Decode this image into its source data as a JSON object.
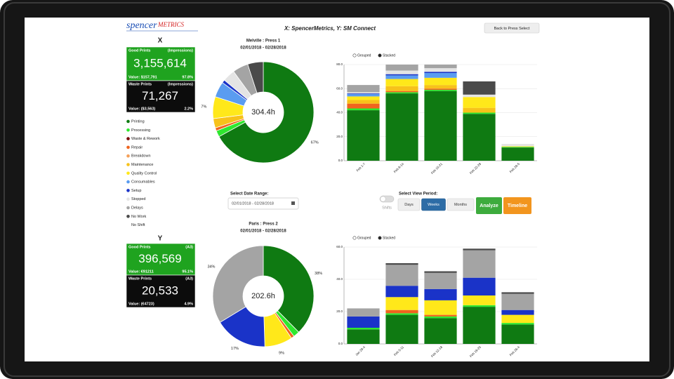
{
  "header": {
    "logo_main": "spencer",
    "logo_accent": "METRICS",
    "title": "X: SpencerMetrics, Y: SM Connect",
    "back_button": "Back to Press Select"
  },
  "panels": [
    {
      "heading": "X",
      "good": {
        "label": "Good Prints",
        "unit": "(Impressions)",
        "count": "3,155,614",
        "value": "Value: $157,791",
        "percent": "97.8%"
      },
      "waste": {
        "label": "Waste Prints",
        "unit": "(Impressions)",
        "count": "71,267",
        "value": "Value: ($3,563)",
        "percent": "2.2%"
      }
    },
    {
      "heading": "Y",
      "good": {
        "label": "Good Prints",
        "unit": "(A3)",
        "count": "396,569",
        "value": "Value: €91211",
        "percent": "95.1%"
      },
      "waste": {
        "label": "Waste Prints",
        "unit": "(A3)",
        "count": "20,533",
        "value": "Value: (€4723)",
        "percent": "4.9%"
      }
    }
  ],
  "controls": {
    "date_label": "Select Date Range:",
    "date_value": "02/01/2018 - 02/28/2018",
    "period_label": "Select View Period:",
    "shifts": "Shifts",
    "periods": [
      "Days",
      "Weeks",
      "Months"
    ],
    "selected_period": "Weeks",
    "analyze": "Analyze",
    "timeline": "Timeline"
  },
  "chart_data": [
    {
      "type": "pie",
      "title": "Melville : Press 1",
      "subtitle": "02/01/2018 - 02/28/2018",
      "center_label": "304.4h",
      "categories": [
        "Printing",
        "Processing",
        "Waste & Rework",
        "Repair",
        "Breakdown",
        "Maintenance",
        "Quality Control",
        "Consumables",
        "Setup",
        "Stopped",
        "Delays",
        "No Work",
        "No Shift"
      ],
      "colors": [
        "#0f7a12",
        "#2ee82e",
        "#7a0a0a",
        "#f0641e",
        "#f4a05a",
        "#f7c21a",
        "#ffe81a",
        "#5a9cf0",
        "#1a33c8",
        "#e4e4e4",
        "#a4a4a4",
        "#4a4a4a",
        "#ffffff"
      ],
      "values": [
        67,
        2,
        0,
        1,
        0,
        3,
        7,
        5,
        1,
        4,
        5,
        5,
        0
      ],
      "value_labels": [
        "67%",
        null,
        null,
        null,
        null,
        null,
        "7%",
        null,
        null,
        null,
        null,
        null,
        null
      ]
    },
    {
      "type": "bar",
      "stacked": true,
      "modes": [
        "Grouped",
        "Stacked"
      ],
      "categories": [
        "Feb 1-7",
        "Feb 8-14",
        "Feb 15-21",
        "Feb 22-28",
        "Feb 29-5"
      ],
      "ylim": [
        0,
        80
      ],
      "yticks": [
        {
          "value": 0,
          "label": "0.0"
        },
        {
          "value": 20,
          "label": "20.0"
        },
        {
          "value": 40,
          "label": "40.0"
        },
        {
          "value": 60,
          "label": "60.0"
        },
        {
          "value": 80,
          "label": "80.0"
        }
      ],
      "series": [
        {
          "values": [
            42,
            56,
            58,
            39,
            11
          ]
        },
        {
          "values": [
            1.5,
            1,
            1,
            1,
            0.5
          ]
        },
        {
          "values": [
            0,
            0,
            0,
            0,
            0
          ]
        },
        {
          "values": [
            4,
            1,
            1,
            0,
            0
          ]
        },
        {
          "values": [
            0,
            0,
            0,
            0,
            0
          ]
        },
        {
          "values": [
            3,
            4,
            3,
            4,
            0
          ]
        },
        {
          "values": [
            3,
            6,
            6,
            9,
            0.5
          ]
        },
        {
          "values": [
            2,
            3,
            4,
            0,
            0
          ]
        },
        {
          "values": [
            0.5,
            1,
            1,
            0,
            0
          ]
        },
        {
          "values": [
            1,
            3,
            3,
            2,
            2
          ]
        },
        {
          "values": [
            6,
            5,
            3,
            0,
            0
          ]
        },
        {
          "values": [
            0,
            0,
            0,
            11,
            0
          ]
        },
        {
          "values": [
            0,
            0,
            0,
            0,
            0
          ]
        }
      ]
    },
    {
      "type": "pie",
      "title": "Paris : Press 2",
      "subtitle": "02/01/2018 - 02/28/2018",
      "center_label": "202.6h",
      "values": [
        38,
        2,
        0,
        1,
        0,
        0,
        9,
        0,
        17,
        0,
        34,
        0,
        0
      ],
      "value_labels": [
        "38%",
        null,
        null,
        null,
        null,
        null,
        "9%",
        null,
        "17%",
        null,
        "34%",
        null,
        null
      ]
    },
    {
      "type": "bar",
      "stacked": true,
      "modes": [
        "Grouped",
        "Stacked"
      ],
      "categories": [
        "Jan 29-4",
        "Feb 5-11",
        "Feb 12-18",
        "Feb 19-25",
        "Feb 26-4"
      ],
      "ylim": [
        0,
        60
      ],
      "yticks": [
        {
          "value": 0,
          "label": "0.0"
        },
        {
          "value": 20,
          "label": "20.0"
        },
        {
          "value": 40,
          "label": "40.0"
        },
        {
          "value": 60,
          "label": "60.0"
        }
      ],
      "series": [
        {
          "values": [
            9,
            18,
            16,
            23,
            12
          ]
        },
        {
          "values": [
            1,
            1,
            1,
            1,
            1
          ]
        },
        {
          "values": [
            0,
            0,
            0,
            0,
            0
          ]
        },
        {
          "values": [
            0,
            2,
            1,
            0,
            0
          ]
        },
        {
          "values": [
            0,
            0,
            0,
            0,
            0
          ]
        },
        {
          "values": [
            0,
            0,
            0,
            0,
            0
          ]
        },
        {
          "values": [
            0,
            8,
            9,
            6,
            5
          ]
        },
        {
          "values": [
            0,
            0,
            0,
            0,
            0
          ]
        },
        {
          "values": [
            7,
            7,
            7,
            11,
            3
          ]
        },
        {
          "values": [
            0,
            0,
            0,
            0,
            0
          ]
        },
        {
          "values": [
            5,
            13,
            10,
            17,
            10
          ]
        },
        {
          "values": [
            0,
            1,
            1,
            1,
            1
          ]
        },
        {
          "values": [
            0,
            0,
            0,
            0,
            0
          ]
        }
      ]
    }
  ]
}
